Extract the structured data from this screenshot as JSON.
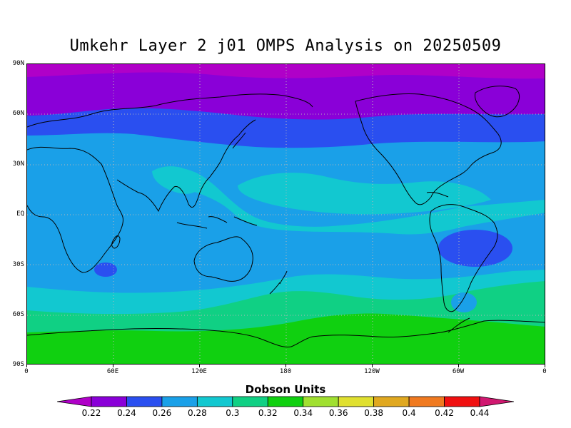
{
  "title": "Umkehr Layer 2 j01 OMPS Analysis on 20250509",
  "y_ticks": [
    "90N",
    "60N",
    "30N",
    "EQ",
    "30S",
    "60S",
    "90S"
  ],
  "x_ticks": [
    "0",
    "60E",
    "120E",
    "180",
    "120W",
    "60W",
    "0"
  ],
  "colorbar": {
    "title": "Dobson Units",
    "labels": [
      "0.22",
      "0.24",
      "0.26",
      "0.28",
      "0.3",
      "0.32",
      "0.34",
      "0.36",
      "0.38",
      "0.4",
      "0.42",
      "0.44"
    ],
    "colors": [
      "#b000c8",
      "#8a00d8",
      "#2a4ff0",
      "#1aa0e8",
      "#12c8d0",
      "#10d084",
      "#10d010",
      "#a0e030",
      "#e0e030",
      "#e0a820",
      "#f07a20",
      "#f01010",
      "#d01870"
    ],
    "low_arrow_color": "#b000c8",
    "high_arrow_color": "#d01870"
  },
  "map": {
    "projection": "equirectangular",
    "lon_range": [
      0,
      360
    ],
    "lat_range": [
      -90,
      90
    ],
    "grid": "dotted",
    "land_outline": "coastlines (black)"
  }
}
